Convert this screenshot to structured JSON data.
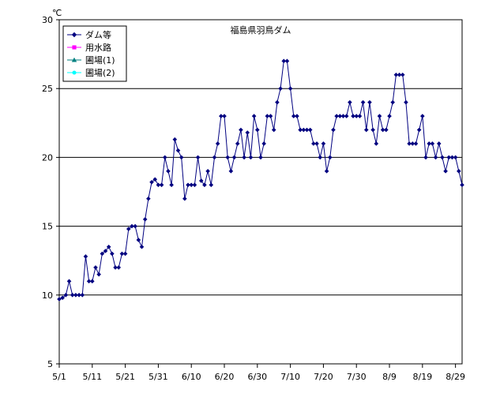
{
  "chart_data": {
    "type": "line",
    "title": "福島県羽鳥ダム",
    "unit_label": "℃",
    "ylim": [
      5,
      30
    ],
    "yticks": [
      5,
      10,
      15,
      20,
      25,
      30
    ],
    "x_ticks": [
      "5/1",
      "5/11",
      "5/21",
      "5/31",
      "6/10",
      "6/20",
      "6/30",
      "7/10",
      "7/20",
      "7/30",
      "8/9",
      "8/19",
      "8/29"
    ],
    "x_days": 123,
    "grid": "horizontal",
    "legend_position": "top-left",
    "series": [
      {
        "name": "ダム等",
        "color": "#000080",
        "marker": "diamond",
        "values": [
          9.7,
          9.8,
          10.0,
          11.0,
          10.0,
          10.0,
          10.0,
          10.0,
          12.8,
          11.0,
          11.0,
          12.0,
          11.5,
          13.0,
          13.2,
          13.5,
          13.0,
          12.0,
          12.0,
          13.0,
          13.0,
          14.8,
          15.0,
          15.0,
          14.0,
          13.5,
          15.5,
          17.0,
          18.2,
          18.4,
          18.0,
          18.0,
          20.0,
          19.0,
          18.0,
          21.3,
          20.5,
          20.0,
          17.0,
          18.0,
          18.0,
          18.0,
          20.0,
          18.3,
          18.0,
          19.0,
          18.0,
          20.0,
          21.0,
          23.0,
          23.0,
          20.0,
          19.0,
          20.0,
          21.0,
          22.0,
          20.0,
          21.8,
          20.0,
          23.0,
          22.0,
          20.0,
          21.0,
          23.0,
          23.0,
          22.0,
          24.0,
          25.0,
          27.0,
          27.0,
          25.0,
          23.0,
          23.0,
          22.0,
          22.0,
          22.0,
          22.0,
          21.0,
          21.0,
          20.0,
          21.0,
          19.0,
          20.0,
          22.0,
          23.0,
          23.0,
          23.0,
          23.0,
          24.0,
          23.0,
          23.0,
          23.0,
          24.0,
          22.0,
          24.0,
          22.0,
          21.0,
          23.0,
          22.0,
          22.0,
          23.0,
          24.0,
          26.0,
          26.0,
          26.0,
          24.0,
          21.0,
          21.0,
          21.0,
          22.0,
          23.0,
          20.0,
          21.0,
          21.0,
          20.0,
          21.0,
          20.0,
          19.0,
          20.0,
          20.0,
          20.0,
          19.0,
          18.0
        ]
      },
      {
        "name": "用水路",
        "color": "#ff00ff",
        "marker": "square",
        "values": []
      },
      {
        "name": "圃場(1)",
        "color": "#008080",
        "marker": "triangle",
        "values": []
      },
      {
        "name": "圃場(2)",
        "color": "#00ffff",
        "marker": "circle",
        "values": []
      }
    ]
  }
}
